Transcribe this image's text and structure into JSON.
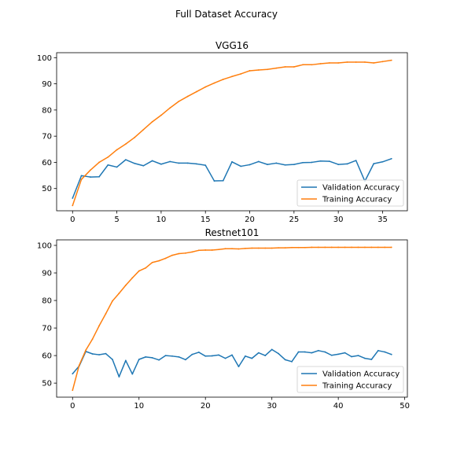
{
  "figure": {
    "suptitle": "Full Dataset Accuracy"
  },
  "chart_data": [
    {
      "type": "line",
      "title": "VGG16",
      "xlabel": "",
      "ylabel": "",
      "xlim": [
        -1.8,
        37.8
      ],
      "ylim": [
        41.5,
        101.9
      ],
      "xticks": [
        0,
        5,
        10,
        15,
        20,
        25,
        30,
        35
      ],
      "yticks": [
        50,
        60,
        70,
        80,
        90,
        100
      ],
      "grid": false,
      "legend_position": "lower-right",
      "series": [
        {
          "name": "Validation Accuracy",
          "color": "#1f77b4",
          "x": [
            0,
            1,
            2,
            3,
            4,
            5,
            6,
            7,
            8,
            9,
            10,
            11,
            12,
            13,
            14,
            15,
            16,
            17,
            18,
            19,
            20,
            21,
            22,
            23,
            24,
            25,
            26,
            27,
            28,
            29,
            30,
            31,
            32,
            33,
            34,
            35,
            36
          ],
          "values": [
            46.3,
            54.9,
            54.4,
            54.5,
            59.0,
            58.2,
            61.0,
            59.6,
            58.7,
            60.6,
            59.3,
            60.3,
            59.7,
            59.7,
            59.4,
            58.9,
            52.9,
            53.0,
            60.2,
            58.5,
            59.1,
            60.3,
            59.2,
            59.7,
            59.0,
            59.2,
            59.9,
            60.0,
            60.5,
            60.4,
            59.2,
            59.4,
            60.7,
            52.8,
            59.5,
            60.2,
            61.4
          ]
        },
        {
          "name": "Training Accuracy",
          "color": "#ff7f0e",
          "x": [
            0,
            1,
            2,
            3,
            4,
            5,
            6,
            7,
            8,
            9,
            10,
            11,
            12,
            13,
            14,
            15,
            16,
            17,
            18,
            19,
            20,
            21,
            22,
            23,
            24,
            25,
            26,
            27,
            28,
            29,
            30,
            31,
            32,
            33,
            34,
            35,
            36
          ],
          "values": [
            43.5,
            53.5,
            57.0,
            60.0,
            62.0,
            64.8,
            67.0,
            69.5,
            72.5,
            75.5,
            78.0,
            80.8,
            83.3,
            85.2,
            87.0,
            88.8,
            90.3,
            91.7,
            92.8,
            93.8,
            95.0,
            95.3,
            95.5,
            96.0,
            96.5,
            96.5,
            97.3,
            97.3,
            97.7,
            98.0,
            98.0,
            98.3,
            98.3,
            98.3,
            98.0,
            98.5,
            99.0
          ]
        }
      ]
    },
    {
      "type": "line",
      "title": "Restnet101",
      "xlabel": "",
      "ylabel": "",
      "xlim": [
        -2.4,
        50.4
      ],
      "ylim": [
        44.9,
        102.0
      ],
      "xticks": [
        0,
        10,
        20,
        30,
        40,
        50
      ],
      "yticks": [
        50,
        60,
        70,
        80,
        90,
        100
      ],
      "grid": false,
      "legend_position": "lower-right",
      "series": [
        {
          "name": "Validation Accuracy",
          "color": "#1f77b4",
          "x": [
            0,
            1,
            2,
            3,
            4,
            5,
            6,
            7,
            8,
            9,
            10,
            11,
            12,
            13,
            14,
            15,
            16,
            17,
            18,
            19,
            20,
            21,
            22,
            23,
            24,
            25,
            26,
            27,
            28,
            29,
            30,
            31,
            32,
            33,
            34,
            35,
            36,
            37,
            38,
            39,
            40,
            41,
            42,
            43,
            44,
            45,
            46,
            47,
            48
          ],
          "values": [
            53.4,
            56.2,
            61.5,
            60.6,
            60.3,
            60.7,
            58.6,
            52.3,
            58.2,
            53.3,
            58.6,
            59.5,
            59.2,
            58.4,
            60.0,
            59.8,
            59.5,
            58.5,
            60.4,
            61.2,
            59.8,
            59.9,
            60.2,
            59.0,
            60.2,
            56.0,
            59.8,
            59.0,
            61.0,
            60.0,
            62.2,
            60.7,
            58.5,
            57.8,
            61.3,
            61.3,
            61.0,
            61.8,
            61.3,
            60.1,
            60.5,
            61.0,
            59.6,
            60.0,
            59.0,
            58.6,
            61.8,
            61.3,
            60.4
          ]
        },
        {
          "name": "Training Accuracy",
          "color": "#ff7f0e",
          "x": [
            0,
            1,
            2,
            3,
            4,
            5,
            6,
            7,
            8,
            9,
            10,
            11,
            12,
            13,
            14,
            15,
            16,
            17,
            18,
            19,
            20,
            21,
            22,
            23,
            24,
            25,
            26,
            27,
            28,
            29,
            30,
            31,
            32,
            33,
            34,
            35,
            36,
            37,
            38,
            39,
            40,
            41,
            42,
            43,
            44,
            45,
            46,
            47,
            48
          ],
          "values": [
            47.4,
            56.5,
            62.0,
            66.0,
            70.8,
            75.2,
            79.8,
            82.6,
            85.5,
            88.2,
            90.7,
            91.8,
            93.8,
            94.4,
            95.3,
            96.4,
            97.0,
            97.2,
            97.6,
            98.2,
            98.3,
            98.3,
            98.5,
            98.8,
            98.8,
            98.7,
            98.9,
            99.0,
            99.0,
            99.0,
            99.0,
            99.1,
            99.1,
            99.2,
            99.2,
            99.2,
            99.3,
            99.3,
            99.3,
            99.3,
            99.3,
            99.3,
            99.3,
            99.3,
            99.3,
            99.3,
            99.3,
            99.3,
            99.3
          ]
        }
      ]
    }
  ]
}
